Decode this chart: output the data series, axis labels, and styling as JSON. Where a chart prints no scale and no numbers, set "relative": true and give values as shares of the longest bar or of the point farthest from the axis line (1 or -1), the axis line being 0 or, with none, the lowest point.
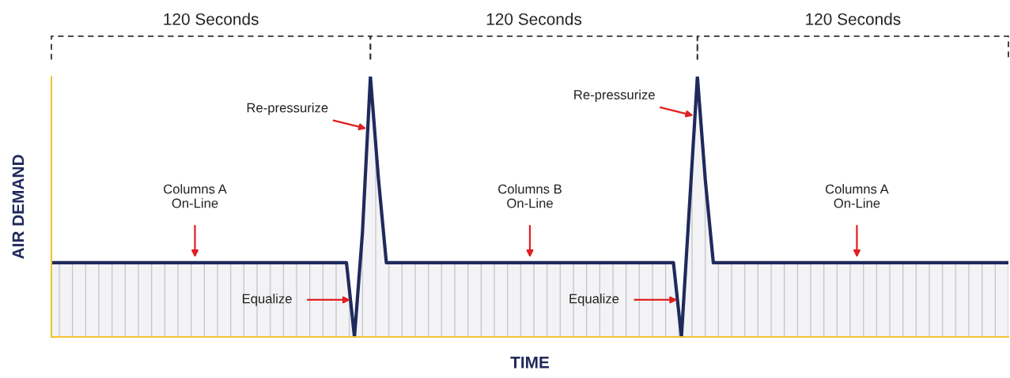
{
  "chart_data": {
    "type": "area",
    "relative": true,
    "xlabel": "TIME",
    "ylabel": "AIR DEMAND",
    "categories": [
      null,
      null,
      null,
      null,
      null,
      null,
      null,
      null,
      null,
      null,
      null,
      null,
      null,
      null,
      null,
      null,
      null,
      null,
      null,
      null,
      null,
      null,
      null,
      null,
      null,
      null,
      null,
      null,
      null,
      null,
      null,
      null,
      null,
      null,
      null,
      null,
      null,
      null,
      null,
      null,
      null,
      null,
      null,
      null,
      null,
      null,
      null,
      null,
      null,
      null,
      null,
      null,
      null,
      null,
      null,
      null,
      null,
      null,
      null,
      null,
      null,
      null,
      null,
      null,
      null,
      null,
      null,
      null,
      null,
      null,
      null,
      null,
      null,
      null,
      null,
      null,
      null,
      null,
      null,
      null,
      null,
      null,
      null,
      null,
      null,
      null,
      null,
      null,
      null,
      null,
      null,
      null,
      null,
      null,
      null,
      null,
      null,
      null,
      null,
      null,
      null,
      null,
      null,
      null,
      null,
      null,
      null,
      null,
      null,
      null,
      null,
      null,
      null,
      null,
      null,
      null,
      null,
      null,
      null,
      null,
      null
    ],
    "series": [
      {
        "color": "#1f2a5c",
        "values": [
          0.285,
          0.285,
          0.285,
          0.285,
          0.285,
          0.285,
          0.285,
          0.285,
          0.285,
          0.285,
          0.285,
          0.285,
          0.285,
          0.285,
          0.285,
          0.285,
          0.285,
          0.285,
          0.285,
          0.285,
          0.285,
          0.285,
          0.285,
          0.285,
          0.285,
          0.285,
          0.285,
          0.285,
          0.285,
          0.285,
          0.285,
          0.285,
          0.285,
          0.285,
          0.285,
          0.285,
          0.285,
          0.285,
          0,
          0.4,
          1,
          0.61,
          0.285,
          0.285,
          0.285,
          0.285,
          0.285,
          0.285,
          0.285,
          0.285,
          0.285,
          0.285,
          0.285,
          0.285,
          0.285,
          0.285,
          0.285,
          0.285,
          0.285,
          0.285,
          0.285,
          0.285,
          0.285,
          0.285,
          0.285,
          0.285,
          0.285,
          0.285,
          0.285,
          0.285,
          0.285,
          0.285,
          0.285,
          0.285,
          0.285,
          0.285,
          0.285,
          0.285,
          0.285,
          0,
          0.5,
          1,
          0.6,
          0.285,
          0.285,
          0.285,
          0.285,
          0.285,
          0.285,
          0.285,
          0.285,
          0.285,
          0.285,
          0.285,
          0.285,
          0.285,
          0.285,
          0.285,
          0.285,
          0.285,
          0.285,
          0.285,
          0.285,
          0.285,
          0.285,
          0.285,
          0.285,
          0.285,
          0.285,
          0.285,
          0.285,
          0.285,
          0.285,
          0.285,
          0.285,
          0.285,
          0.285,
          0.285,
          0.285,
          0.285,
          0.285
        ]
      }
    ],
    "annotations": [
      "120 Seconds",
      "120 Seconds",
      "120 Seconds",
      "Re-pressurize",
      "Equalize",
      "Re-pressurize",
      "Equalize",
      "Columns A\nOn-Line",
      "Columns B\nOn-Line",
      "Columns A\nOn-Line"
    ]
  }
}
